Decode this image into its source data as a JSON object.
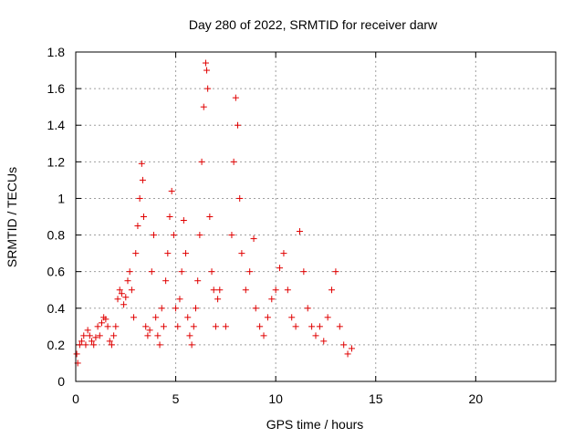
{
  "chart_data": {
    "type": "scatter",
    "title": "Day 280 of 2022, SRMTID for receiver darw",
    "xlabel": "GPS time / hours",
    "ylabel": "SRMTID / TECUs",
    "xlim": [
      0,
      24
    ],
    "ylim": [
      0,
      1.8
    ],
    "xticks": [
      "0",
      "5",
      "10",
      "15",
      "20"
    ],
    "yticks": [
      "0",
      "0.2",
      "0.4",
      "0.6",
      "0.8",
      "1",
      "1.2",
      "1.4",
      "1.6",
      "1.8"
    ],
    "grid": true,
    "marker": "+",
    "color": "#e00000",
    "series": [
      {
        "x": [
          0.05,
          0.1,
          0.2,
          0.3,
          0.4,
          0.5,
          0.6,
          0.7,
          0.8,
          0.9,
          1.0,
          1.1,
          1.2,
          1.3,
          1.4,
          1.5,
          1.6,
          1.7,
          1.8,
          1.9,
          2.0,
          2.1,
          2.2,
          2.3,
          2.4,
          2.5,
          2.6,
          2.7,
          2.8,
          2.9,
          3.0,
          3.1,
          3.2,
          3.3,
          3.35,
          3.4,
          3.5,
          3.6,
          3.7,
          3.8,
          3.9,
          4.0,
          4.1,
          4.2,
          4.3,
          4.4,
          4.5,
          4.6,
          4.7,
          4.8,
          4.9,
          5.0,
          5.1,
          5.2,
          5.3,
          5.4,
          5.5,
          5.6,
          5.7,
          5.8,
          5.9,
          6.0,
          6.1,
          6.2,
          6.3,
          6.4,
          6.5,
          6.55,
          6.6,
          6.7,
          6.8,
          6.9,
          7.0,
          7.1,
          7.2,
          7.5,
          7.8,
          7.9,
          8.0,
          8.1,
          8.2,
          8.3,
          8.5,
          8.7,
          8.9,
          9.0,
          9.2,
          9.4,
          9.6,
          9.8,
          10.0,
          10.2,
          10.4,
          10.6,
          10.8,
          11.0,
          11.2,
          11.4,
          11.6,
          11.8,
          12.0,
          12.2,
          12.4,
          12.6,
          12.8,
          13.0,
          13.2,
          13.4,
          13.6,
          13.8
        ],
        "y": [
          0.15,
          0.1,
          0.2,
          0.22,
          0.25,
          0.2,
          0.28,
          0.25,
          0.22,
          0.2,
          0.24,
          0.3,
          0.25,
          0.32,
          0.35,
          0.34,
          0.3,
          0.22,
          0.2,
          0.25,
          0.3,
          0.45,
          0.5,
          0.48,
          0.42,
          0.46,
          0.55,
          0.6,
          0.5,
          0.35,
          0.7,
          0.85,
          1.0,
          1.19,
          1.1,
          0.9,
          0.3,
          0.25,
          0.28,
          0.6,
          0.8,
          0.35,
          0.25,
          0.2,
          0.4,
          0.3,
          0.55,
          0.7,
          0.9,
          1.04,
          0.8,
          0.4,
          0.3,
          0.45,
          0.6,
          0.88,
          0.7,
          0.35,
          0.25,
          0.2,
          0.3,
          0.4,
          0.55,
          0.8,
          1.2,
          1.5,
          1.74,
          1.7,
          1.6,
          0.9,
          0.6,
          0.5,
          0.3,
          0.45,
          0.5,
          0.3,
          0.8,
          1.2,
          1.55,
          1.4,
          1.0,
          0.7,
          0.5,
          0.6,
          0.78,
          0.4,
          0.3,
          0.25,
          0.35,
          0.45,
          0.5,
          0.62,
          0.7,
          0.5,
          0.35,
          0.3,
          0.82,
          0.6,
          0.4,
          0.3,
          0.25,
          0.3,
          0.22,
          0.35,
          0.5,
          0.6,
          0.3,
          0.2,
          0.15,
          0.18
        ]
      }
    ]
  }
}
